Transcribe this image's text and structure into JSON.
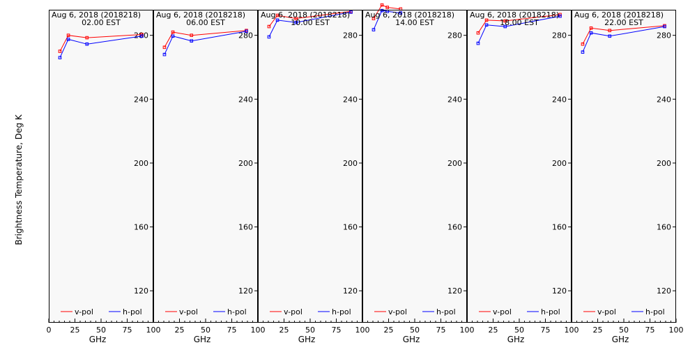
{
  "ylabel": "Brightness Temperature, Deg K",
  "legend": {
    "v_label": "v-pol",
    "h_label": "h-pol",
    "placement": "bottom"
  },
  "colors": {
    "v_pol": "#ff0000",
    "h_pol": "#0000ff",
    "panel_bg": "#f8f8f8",
    "frame": "#000000"
  },
  "chart_data": [
    {
      "type": "line",
      "title": "Aug  6, 2018 (2018218)",
      "subtitle": "02.00  EST",
      "xlabel": "GHz",
      "xlim": [
        0,
        100
      ],
      "ylim": [
        100,
        296
      ],
      "x_ticks": [
        0,
        25,
        50,
        75,
        100
      ],
      "x_tick_labels": [
        "0",
        "25",
        "50",
        "75",
        "100"
      ],
      "y_ticks": [
        120,
        160,
        200,
        240,
        280
      ],
      "y_tick_labels": [
        "120",
        "160",
        "200",
        "240",
        "280"
      ],
      "grid": false,
      "series": [
        {
          "name": "v-pol",
          "x": [
            10.65,
            18.7,
            36.5,
            89
          ],
          "values": [
            270,
            280,
            278.5,
            280.5
          ]
        },
        {
          "name": "h-pol",
          "x": [
            10.65,
            18.7,
            36.5,
            89
          ],
          "values": [
            266,
            277.5,
            274.5,
            279.5
          ]
        }
      ]
    },
    {
      "type": "line",
      "title": "Aug  6, 2018 (2018218)",
      "subtitle": "06.00  EST",
      "xlabel": "GHz",
      "xlim": [
        0,
        100
      ],
      "ylim": [
        100,
        296
      ],
      "x_ticks": [
        0,
        25,
        50,
        75,
        100
      ],
      "x_tick_labels": [
        "0",
        "25",
        "50",
        "75",
        "100"
      ],
      "y_ticks": [
        120,
        160,
        200,
        240,
        280
      ],
      "y_tick_labels": [
        "120",
        "160",
        "200",
        "240",
        "280"
      ],
      "grid": false,
      "series": [
        {
          "name": "v-pol",
          "x": [
            10.65,
            18.7,
            36.5,
            89
          ],
          "values": [
            272.5,
            282,
            280,
            283
          ]
        },
        {
          "name": "h-pol",
          "x": [
            10.65,
            18.7,
            36.5,
            89
          ],
          "values": [
            268,
            279.5,
            276.5,
            282.5
          ]
        }
      ]
    },
    {
      "type": "line",
      "title": "Aug  6, 2018 (2018218)",
      "subtitle": "10.00  EST",
      "xlabel": "GHz",
      "xlim": [
        0,
        100
      ],
      "ylim": [
        100,
        296
      ],
      "x_ticks": [
        0,
        25,
        50,
        75,
        100
      ],
      "x_tick_labels": [
        "0",
        "25",
        "50",
        "75",
        "100"
      ],
      "y_ticks": [
        120,
        160,
        200,
        240,
        280
      ],
      "y_tick_labels": [
        "120",
        "160",
        "200",
        "240",
        "280"
      ],
      "grid": false,
      "series": [
        {
          "name": "v-pol",
          "x": [
            10.65,
            18.7,
            36.5,
            89
          ],
          "values": [
            285.5,
            292.5,
            290.5,
            295
          ]
        },
        {
          "name": "h-pol",
          "x": [
            10.65,
            18.7,
            36.5,
            89
          ],
          "values": [
            279,
            289.5,
            288,
            294.5
          ]
        }
      ]
    },
    {
      "type": "line",
      "title": "Aug  6, 2018 (2018218)",
      "subtitle": "14.00  EST",
      "xlabel": "GHz",
      "xlim": [
        0,
        100
      ],
      "ylim": [
        100,
        296
      ],
      "x_ticks": [
        0,
        25,
        50,
        75,
        100
      ],
      "x_tick_labels": [
        "0",
        "25",
        "50",
        "75",
        "100"
      ],
      "y_ticks": [
        120,
        160,
        200,
        240,
        280
      ],
      "y_tick_labels": [
        "120",
        "160",
        "200",
        "240",
        "280"
      ],
      "grid": false,
      "series": [
        {
          "name": "v-pol",
          "x": [
            10.65,
            18.7,
            23.8,
            36.5
          ],
          "values": [
            290.5,
            299,
            297.5,
            296.5
          ]
        },
        {
          "name": "h-pol",
          "x": [
            10.65,
            18.7,
            23.8,
            36.5
          ],
          "values": [
            283.5,
            295.5,
            295,
            294
          ]
        }
      ]
    },
    {
      "type": "line",
      "title": "Aug  6, 2018 (2018218)",
      "subtitle": "18.00  EST",
      "xlabel": "GHz",
      "xlim": [
        0,
        100
      ],
      "ylim": [
        100,
        296
      ],
      "x_ticks": [
        0,
        25,
        50,
        75,
        100
      ],
      "x_tick_labels": [
        "0",
        "25",
        "50",
        "75",
        "100"
      ],
      "y_ticks": [
        120,
        160,
        200,
        240,
        280
      ],
      "y_tick_labels": [
        "120",
        "160",
        "200",
        "240",
        "280"
      ],
      "grid": false,
      "series": [
        {
          "name": "v-pol",
          "x": [
            10.65,
            18.7,
            36.5,
            89
          ],
          "values": [
            281.5,
            289.5,
            289,
            293
          ]
        },
        {
          "name": "h-pol",
          "x": [
            10.65,
            18.7,
            36.5,
            89
          ],
          "values": [
            275,
            286.5,
            285.5,
            292
          ]
        }
      ]
    },
    {
      "type": "line",
      "title": "Aug  6, 2018 (2018218)",
      "subtitle": "22.00  EST",
      "xlabel": "GHz",
      "xlim": [
        0,
        100
      ],
      "ylim": [
        100,
        296
      ],
      "x_ticks": [
        0,
        25,
        50,
        75,
        100
      ],
      "x_tick_labels": [
        "0",
        "25",
        "50",
        "75",
        "100"
      ],
      "y_ticks": [
        120,
        160,
        200,
        240,
        280
      ],
      "y_tick_labels": [
        "120",
        "160",
        "200",
        "240",
        "280"
      ],
      "grid": false,
      "series": [
        {
          "name": "v-pol",
          "x": [
            10.65,
            18.7,
            36.5,
            89
          ],
          "values": [
            274.5,
            284.5,
            283,
            286
          ]
        },
        {
          "name": "h-pol",
          "x": [
            10.65,
            18.7,
            36.5,
            89
          ],
          "values": [
            269.5,
            281.5,
            279.5,
            285.5
          ]
        }
      ]
    }
  ]
}
